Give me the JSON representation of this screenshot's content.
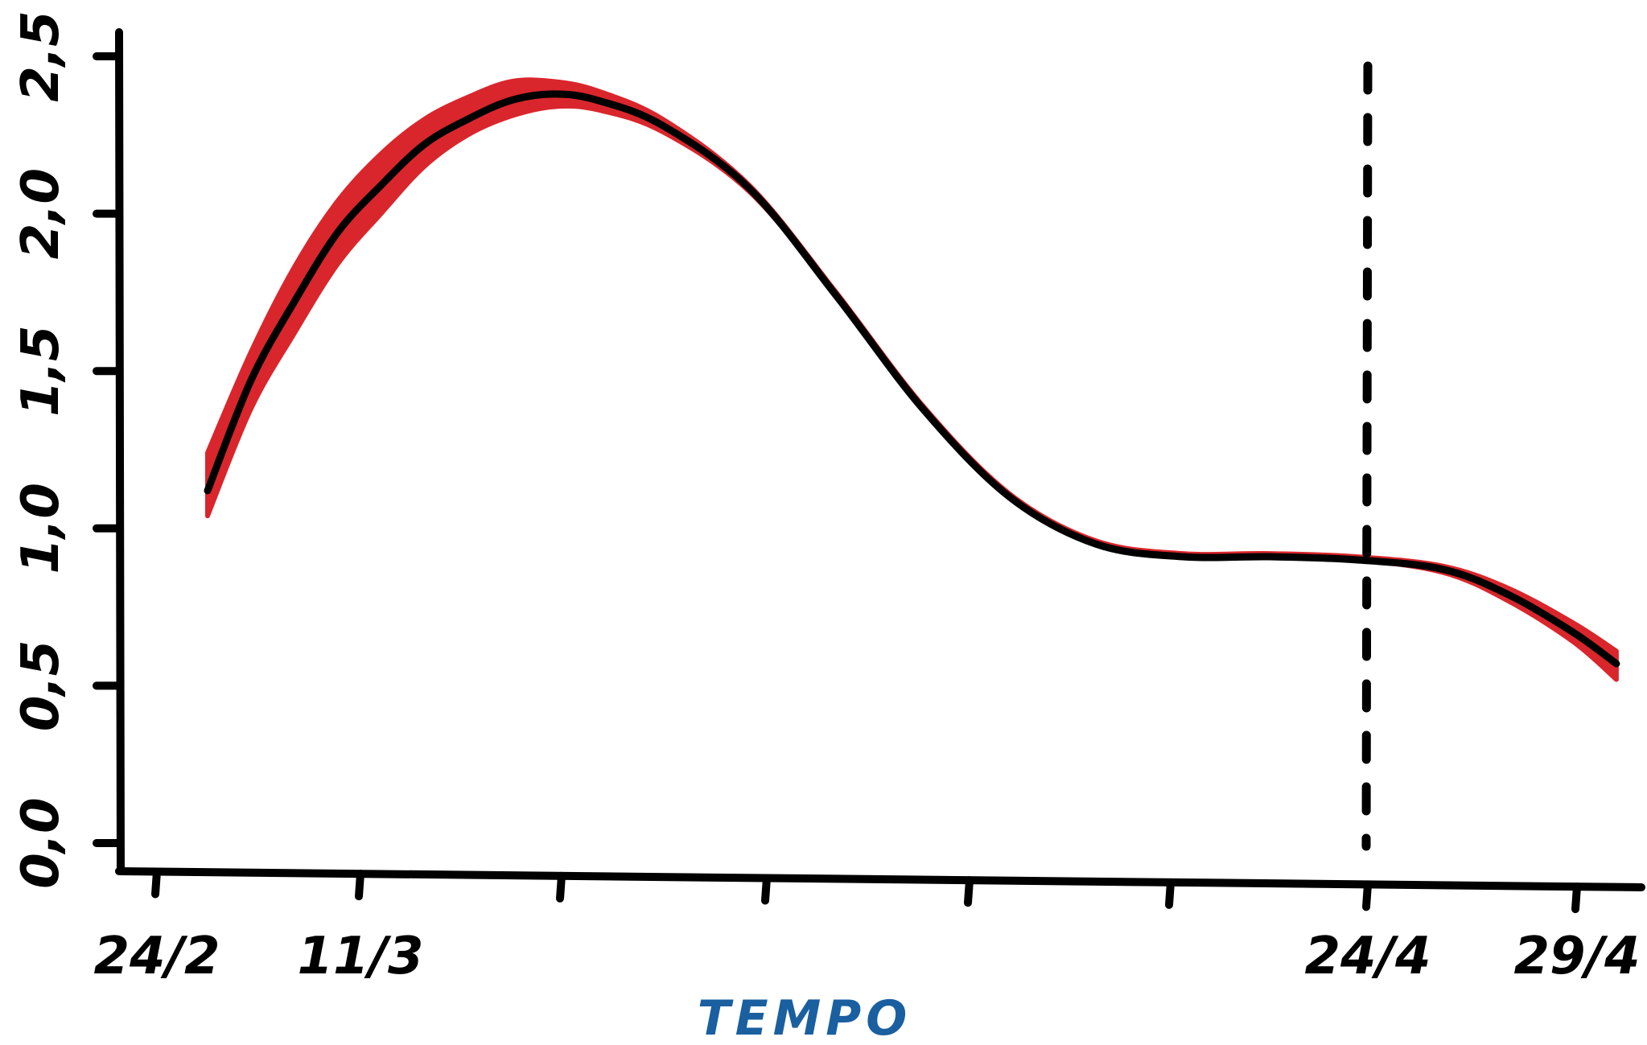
{
  "chart_data": {
    "type": "line",
    "title": "",
    "xlabel": "TEMPO",
    "ylabel": "",
    "x_start": "24/2",
    "x_end": "29/4",
    "ylim": [
      0.0,
      2.5
    ],
    "x_ticks": [
      "24/2",
      "11/3",
      "",
      "",
      "",
      "",
      "24/4",
      "29/4"
    ],
    "y_ticks": [
      "0,0",
      "0,5",
      "1,0",
      "1,5",
      "2,0",
      "2,5"
    ],
    "vertical_marker": {
      "x": "24/4",
      "style": "dashed"
    },
    "series": [
      {
        "type": "line",
        "color": "#000000",
        "x": [
          "24/2",
          "26/2",
          "28/2",
          "1/3",
          "3/3",
          "5/3",
          "7/3",
          "9/3",
          "11/3",
          "13/3",
          "16/3",
          "20/3",
          "24/3",
          "28/3",
          "1/4",
          "5/4",
          "9/4",
          "13/4",
          "17/4",
          "21/4",
          "24/4",
          "27/4",
          "29/4"
        ],
        "y": [
          1.12,
          1.47,
          1.72,
          1.94,
          2.09,
          2.22,
          2.3,
          2.36,
          2.38,
          2.36,
          2.28,
          2.08,
          1.74,
          1.38,
          1.1,
          0.95,
          0.91,
          0.91,
          0.9,
          0.87,
          0.79,
          0.67,
          0.57
        ]
      },
      {
        "type": "band",
        "color": "#d9262c",
        "x": [
          "24/2",
          "26/2",
          "28/2",
          "1/3",
          "3/3",
          "5/3",
          "7/3",
          "9/3",
          "11/3",
          "13/3",
          "16/3",
          "20/3",
          "24/3",
          "28/3",
          "1/4",
          "5/4",
          "9/4",
          "13/4",
          "17/4",
          "21/4",
          "24/4",
          "27/4",
          "29/4"
        ],
        "lower": [
          1.04,
          1.38,
          1.62,
          1.84,
          2.0,
          2.15,
          2.25,
          2.31,
          2.34,
          2.33,
          2.26,
          2.07,
          1.74,
          1.38,
          1.1,
          0.95,
          0.91,
          0.91,
          0.9,
          0.86,
          0.77,
          0.64,
          0.52
        ],
        "upper": [
          1.24,
          1.56,
          1.83,
          2.04,
          2.19,
          2.3,
          2.37,
          2.42,
          2.42,
          2.39,
          2.3,
          2.09,
          1.75,
          1.39,
          1.11,
          0.96,
          0.92,
          0.92,
          0.91,
          0.88,
          0.81,
          0.7,
          0.61
        ]
      }
    ]
  }
}
